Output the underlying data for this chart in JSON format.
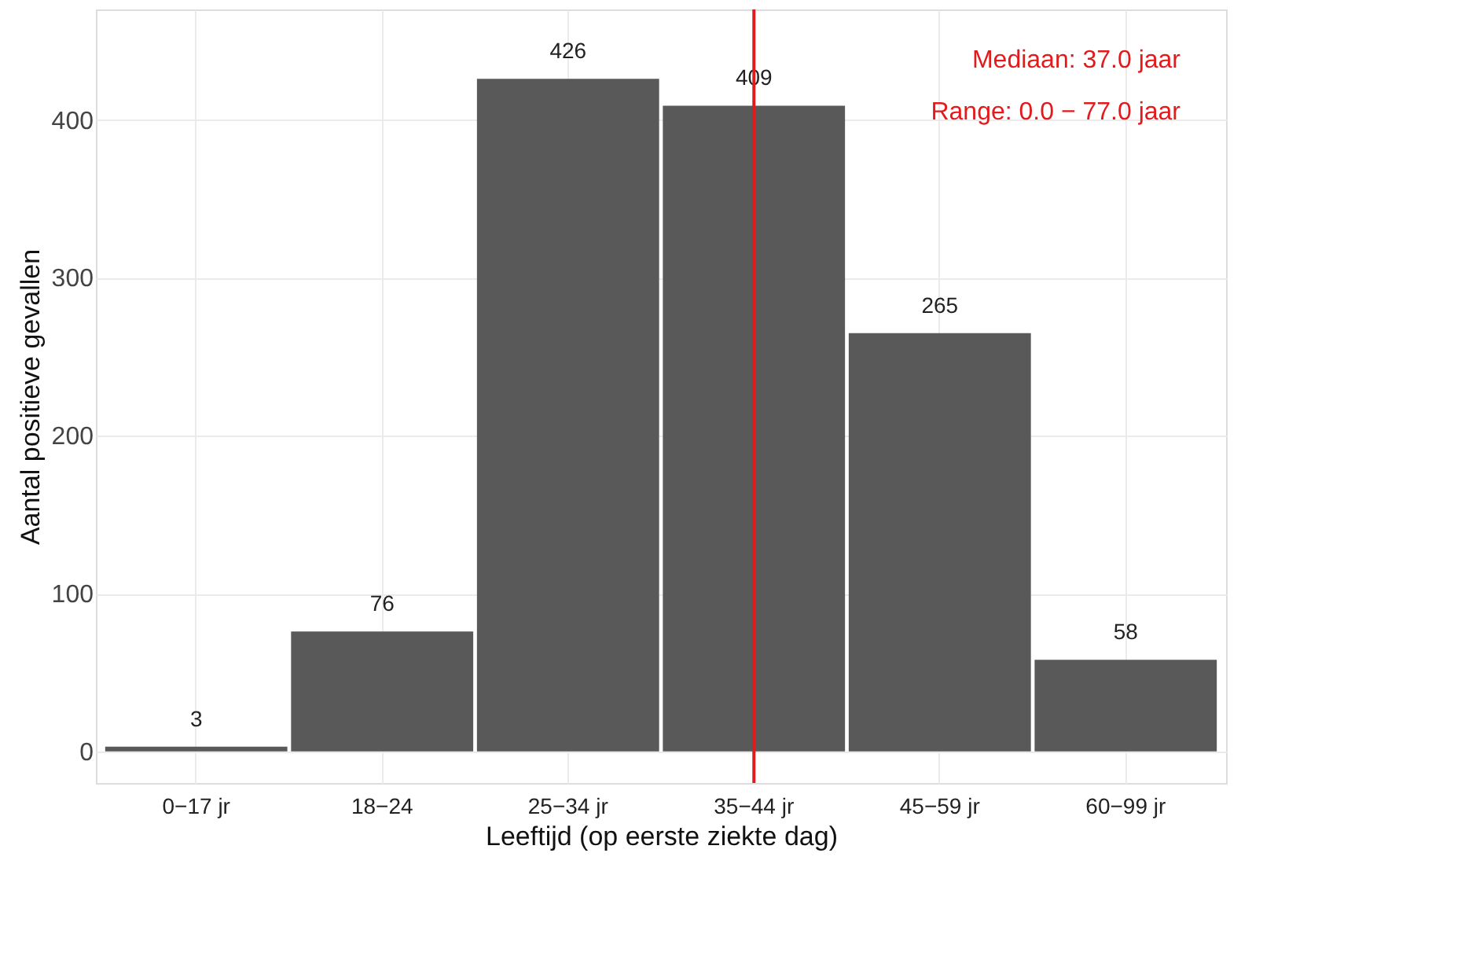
{
  "chart_data": {
    "type": "bar",
    "xlabel": "Leeftijd (op eerste ziekte dag)",
    "ylabel": "Aantal positieve gevallen",
    "categories": [
      "0−17 jr",
      "18−24",
      "25−34 jr",
      "35−44 jr",
      "45−59 jr",
      "60−99 jr"
    ],
    "values": [
      3,
      76,
      426,
      409,
      265,
      58
    ],
    "color": "#595959",
    "data_labels": true,
    "ylim": [
      -20,
      470
    ],
    "yticks": [
      0,
      100,
      200,
      300,
      400
    ],
    "grid": true,
    "ref_lines": [
      {
        "axis": "x",
        "value": "35−44 jr",
        "label": null,
        "color": "#e31a1c"
      }
    ],
    "annotations": [
      "Mediaan: 37.0 jaar",
      "Range: 0.0 − 77.0 jaar"
    ]
  }
}
